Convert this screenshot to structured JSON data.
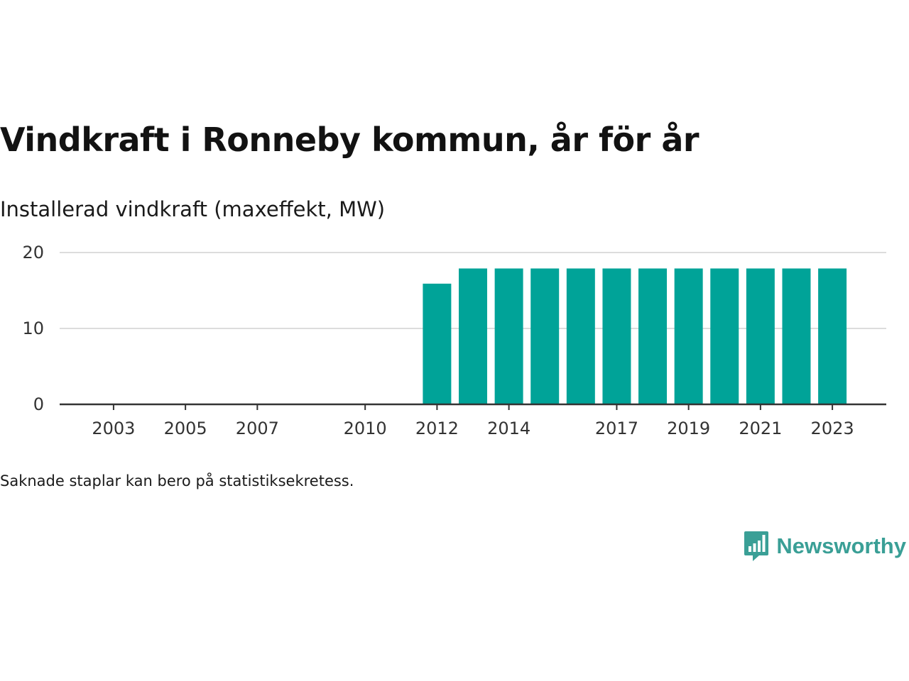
{
  "title": "Vindkraft i Ronneby kommun, år för år",
  "subtitle": "Installerad vindkraft (maxeffekt, MW)",
  "footnote": "Saknade staplar kan bero på statistiksekretess.",
  "brand": {
    "name": "Newsworthy",
    "icon": "newsworthy-logo-icon",
    "color": "#3a9f96"
  },
  "chart_data": {
    "type": "bar",
    "x_range": [
      2001.5,
      2024.5
    ],
    "ylim": [
      0,
      20
    ],
    "y_ticks": [
      0,
      10,
      20
    ],
    "x_tick_labels": [
      "2003",
      "2005",
      "2007",
      "2010",
      "2012",
      "2014",
      "2017",
      "2019",
      "2021",
      "2023"
    ],
    "categories": [
      "2012",
      "2013",
      "2014",
      "2015",
      "2016",
      "2017",
      "2018",
      "2019",
      "2020",
      "2021",
      "2022",
      "2023"
    ],
    "values": [
      15.9,
      17.9,
      17.9,
      17.9,
      17.9,
      17.9,
      17.9,
      17.9,
      17.9,
      17.9,
      17.9,
      17.9
    ],
    "bar_color": "#00a398",
    "grid": true,
    "title": "Vindkraft i Ronneby kommun, år för år",
    "xlabel": "",
    "ylabel": "Installerad vindkraft (maxeffekt, MW)"
  }
}
